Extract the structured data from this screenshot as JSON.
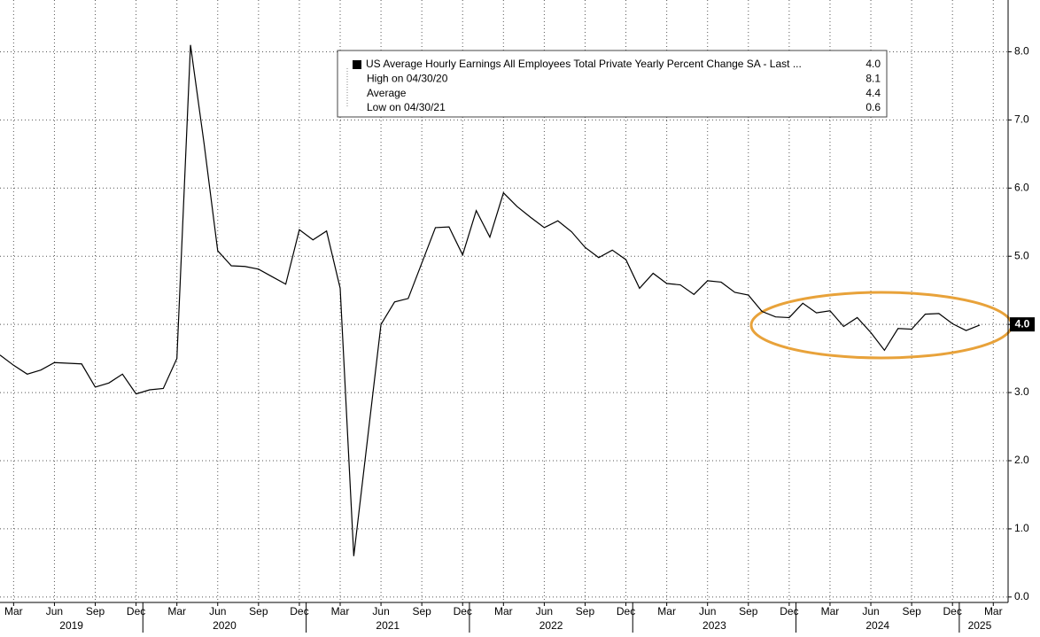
{
  "chart_data": {
    "type": "line",
    "categories": [
      null,
      "Mar",
      null,
      null,
      "Jun",
      null,
      null,
      "Sep",
      null,
      null,
      "Dec",
      null,
      null,
      "Mar",
      null,
      null,
      "Jun",
      null,
      null,
      "Sep",
      null,
      null,
      "Dec",
      null,
      null,
      "Mar",
      null,
      null,
      "Jun",
      null,
      null,
      "Sep",
      null,
      null,
      "Dec",
      null,
      null,
      "Mar",
      null,
      null,
      "Jun",
      null,
      null,
      "Sep",
      null,
      null,
      "Dec",
      null,
      null,
      "Mar",
      null,
      null,
      "Jun",
      null,
      null,
      "Sep",
      null,
      null,
      "Dec",
      null,
      null,
      "Mar",
      null,
      null,
      "Jun",
      null,
      null,
      "Sep",
      null,
      null,
      "Dec",
      null,
      null,
      "Mar"
    ],
    "years": [
      "2019",
      "2020",
      "2021",
      "2022",
      "2023",
      "2024",
      "2025"
    ],
    "series": [
      {
        "name": "US Average Hourly Earnings All Employees Total Private Yearly Percent Change SA - Last ...",
        "color": "#000000",
        "values": [
          3.55,
          3.4,
          3.27,
          3.33,
          3.44,
          3.43,
          3.42,
          3.08,
          3.14,
          3.27,
          2.98,
          3.04,
          3.06,
          3.5,
          8.1,
          6.65,
          5.08,
          4.86,
          4.85,
          4.81,
          4.7,
          4.59,
          5.39,
          5.24,
          5.37,
          4.53,
          0.6,
          2.3,
          4.0,
          4.33,
          4.38,
          4.9,
          5.42,
          5.43,
          5.02,
          5.67,
          5.28,
          5.93,
          5.73,
          5.57,
          5.42,
          5.52,
          5.36,
          5.13,
          4.98,
          5.09,
          4.95,
          4.53,
          4.75,
          4.6,
          4.58,
          4.44,
          4.64,
          4.62,
          4.47,
          4.43,
          4.19,
          4.11,
          4.1,
          4.31,
          4.17,
          4.2,
          3.97,
          4.1,
          3.88,
          3.62,
          3.94,
          3.93,
          4.15,
          4.16,
          4.01,
          3.91,
          3.99,
          null
        ]
      }
    ],
    "stats": [
      {
        "name": "US Average Hourly Earnings All Employees Total Private Yearly Percent Change SA - Last ...",
        "value": 4.0,
        "value_label": "4.0"
      },
      {
        "name": "High on 04/30/20",
        "value": 8.1,
        "value_label": "8.1"
      },
      {
        "name": "Average",
        "value": 4.4,
        "value_label": "4.4"
      },
      {
        "name": "Low on 04/30/21",
        "value": 0.6,
        "value_label": "0.6"
      }
    ],
    "ylim": [
      -0.08,
      8.76
    ],
    "yticks": [
      {
        "value": 0,
        "label": "0.0"
      },
      {
        "value": 1,
        "label": "1.0"
      },
      {
        "value": 2,
        "label": "2.0"
      },
      {
        "value": 3,
        "label": "3.0"
      },
      {
        "value": 4,
        "label": "4.0"
      },
      {
        "value": 5,
        "label": "5.0"
      },
      {
        "value": 6,
        "label": "6.0"
      },
      {
        "value": 7,
        "label": "7.0"
      },
      {
        "value": 8,
        "label": "8.0"
      }
    ],
    "grid": true
  }
}
